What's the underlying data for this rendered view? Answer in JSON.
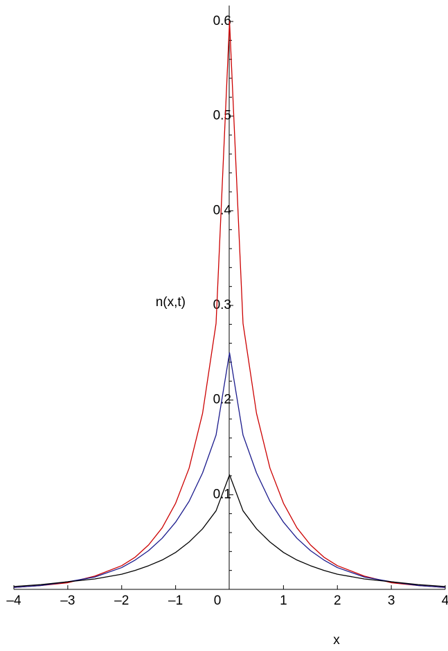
{
  "chart_data": {
    "type": "line",
    "title": "",
    "xlabel": "x",
    "ylabel": "n(x,t)",
    "xlim": [
      -4,
      4
    ],
    "ylim": [
      0,
      0.6
    ],
    "grid": false,
    "legend": "none",
    "x_ticks": [
      -4,
      -3,
      -2,
      -1,
      0,
      1,
      2,
      3,
      4
    ],
    "x_tick_labels": [
      "–4",
      "–3",
      "–2",
      "–1",
      "0",
      "1",
      "2",
      "3",
      "4"
    ],
    "y_ticks": [
      0.1,
      0.2,
      0.3,
      0.4,
      0.5,
      0.6
    ],
    "y_tick_labels": [
      "0.1",
      "0.2",
      "0.3",
      "0.4",
      "0.5",
      "0.6"
    ],
    "x": [
      -4,
      -3.5,
      -3,
      -2.5,
      -2,
      -1.75,
      -1.5,
      -1.25,
      -1,
      -0.75,
      -0.5,
      -0.25,
      0,
      0.25,
      0.5,
      0.75,
      1,
      1.25,
      1.5,
      1.75,
      2,
      2.5,
      3,
      3.5,
      4
    ],
    "series": [
      {
        "color": "#cc0000",
        "values": [
          0.002,
          0.004,
          0.007,
          0.014,
          0.025,
          0.034,
          0.047,
          0.065,
          0.091,
          0.128,
          0.186,
          0.281,
          0.6,
          0.281,
          0.186,
          0.128,
          0.091,
          0.065,
          0.047,
          0.034,
          0.025,
          0.014,
          0.007,
          0.004,
          0.002
        ]
      },
      {
        "color": "#1a1a8c",
        "values": [
          0.002,
          0.004,
          0.008,
          0.013,
          0.023,
          0.031,
          0.041,
          0.054,
          0.071,
          0.093,
          0.123,
          0.163,
          0.25,
          0.163,
          0.123,
          0.093,
          0.071,
          0.054,
          0.041,
          0.031,
          0.023,
          0.013,
          0.008,
          0.004,
          0.002
        ]
      },
      {
        "color": "#000000",
        "values": [
          0.003,
          0.005,
          0.008,
          0.011,
          0.016,
          0.02,
          0.025,
          0.031,
          0.039,
          0.05,
          0.064,
          0.083,
          0.121,
          0.083,
          0.064,
          0.05,
          0.039,
          0.031,
          0.025,
          0.02,
          0.016,
          0.011,
          0.008,
          0.005,
          0.003
        ]
      }
    ]
  }
}
